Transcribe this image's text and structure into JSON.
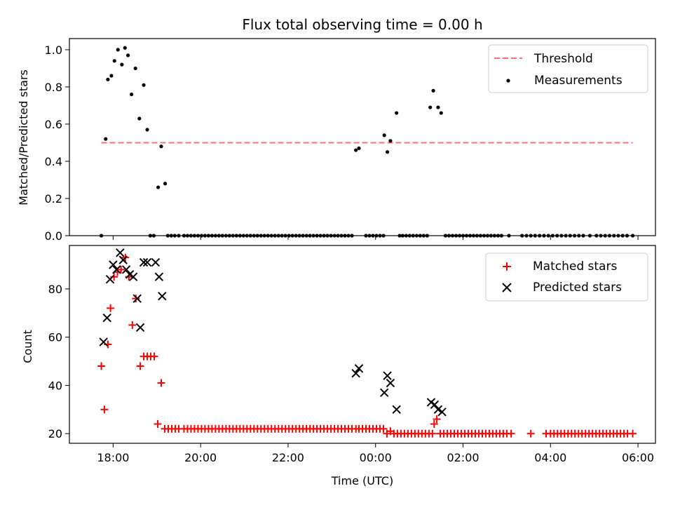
{
  "title": "Flux total observing time = 0.00 h",
  "chart_data": [
    {
      "type": "scatter",
      "ylabel": "Matched/Predicted stars",
      "xlim_hours": [
        17.0,
        30.4
      ],
      "ylim": [
        0,
        1.06
      ],
      "yticks": [
        0.0,
        0.2,
        0.4,
        0.6,
        0.8,
        1.0
      ],
      "ytick_labels": [
        "0.0",
        "0.2",
        "0.4",
        "0.6",
        "0.8",
        "1.0"
      ],
      "legend_position": "top-right",
      "threshold": {
        "name": "Threshold",
        "value": 0.5,
        "x_start": 17.73,
        "x_end": 29.88,
        "color": "#ff6e6e"
      },
      "series": [
        {
          "name": "Measurements",
          "color": "#000000",
          "x": [
            17.73,
            17.83,
            17.88,
            17.96,
            18.03,
            18.11,
            18.2,
            18.27,
            18.34,
            18.42,
            18.51,
            18.6,
            18.7,
            18.78,
            18.85,
            18.93,
            19.03,
            19.1,
            19.19,
            19.25,
            19.33,
            19.41,
            19.5,
            19.62,
            19.7,
            19.78,
            19.86,
            19.94,
            20.02,
            20.1,
            20.18,
            20.26,
            20.34,
            20.42,
            20.5,
            20.58,
            20.66,
            20.74,
            20.82,
            20.9,
            20.98,
            21.06,
            21.14,
            21.22,
            21.3,
            21.38,
            21.46,
            21.54,
            21.62,
            21.7,
            21.78,
            21.86,
            21.94,
            22.02,
            22.1,
            22.18,
            22.26,
            22.34,
            22.42,
            22.5,
            22.58,
            22.66,
            22.74,
            22.82,
            22.9,
            22.98,
            23.06,
            23.14,
            23.22,
            23.3,
            23.38,
            23.46,
            23.55,
            23.62,
            23.78,
            23.86,
            23.94,
            24.02,
            24.1,
            24.18,
            24.2,
            24.27,
            24.34,
            24.48,
            24.55,
            24.62,
            24.7,
            24.78,
            24.86,
            24.94,
            25.02,
            25.1,
            25.18,
            25.25,
            25.32,
            25.43,
            25.5,
            25.6,
            25.68,
            25.76,
            25.84,
            25.92,
            26.0,
            26.08,
            26.16,
            26.24,
            26.32,
            26.4,
            26.48,
            26.56,
            26.64,
            26.72,
            26.8,
            26.88,
            27.05,
            27.35,
            27.45,
            27.55,
            27.65,
            27.75,
            27.85,
            27.95,
            28.05,
            28.15,
            28.25,
            28.35,
            28.45,
            28.55,
            28.65,
            28.75,
            28.9,
            29.05,
            29.15,
            29.25,
            29.35,
            29.45,
            29.55,
            29.65,
            29.75,
            29.88
          ],
          "y": [
            0.0,
            0.52,
            0.84,
            0.86,
            0.94,
            1.0,
            0.92,
            1.01,
            0.97,
            0.76,
            0.9,
            0.63,
            0.81,
            0.57,
            0.0,
            0.0,
            0.26,
            0.48,
            0.28,
            0.0,
            0.0,
            0.0,
            0.0,
            0.0,
            0.0,
            0.0,
            0.0,
            0.0,
            0.0,
            0.0,
            0.0,
            0.0,
            0.0,
            0.0,
            0.0,
            0.0,
            0.0,
            0.0,
            0.0,
            0.0,
            0.0,
            0.0,
            0.0,
            0.0,
            0.0,
            0.0,
            0.0,
            0.0,
            0.0,
            0.0,
            0.0,
            0.0,
            0.0,
            0.0,
            0.0,
            0.0,
            0.0,
            0.0,
            0.0,
            0.0,
            0.0,
            0.0,
            0.0,
            0.0,
            0.0,
            0.0,
            0.0,
            0.0,
            0.0,
            0.0,
            0.0,
            0.0,
            0.46,
            0.47,
            0.0,
            0.0,
            0.0,
            0.0,
            0.0,
            0.0,
            0.54,
            0.45,
            0.51,
            0.66,
            0.0,
            0.0,
            0.0,
            0.0,
            0.0,
            0.0,
            0.0,
            0.0,
            0.0,
            0.69,
            0.78,
            0.69,
            0.66,
            0.0,
            0.0,
            0.0,
            0.0,
            0.0,
            0.0,
            0.0,
            0.0,
            0.0,
            0.0,
            0.0,
            0.0,
            0.0,
            0.0,
            0.0,
            0.0,
            0.0,
            0.0,
            0.0,
            0.0,
            0.0,
            0.0,
            0.0,
            0.0,
            0.0,
            0.0,
            0.0,
            0.0,
            0.0,
            0.0,
            0.0,
            0.0,
            0.0,
            0.0,
            0.0,
            0.0,
            0.0,
            0.0,
            0.0,
            0.0,
            0.0,
            0.0,
            0.0
          ]
        }
      ]
    },
    {
      "type": "scatter",
      "ylabel": "Count",
      "xlabel": "Time (UTC)",
      "xlim_hours": [
        17.0,
        30.4
      ],
      "ylim": [
        16,
        98
      ],
      "yticks": [
        20,
        40,
        60,
        80
      ],
      "ytick_labels": [
        "20",
        "40",
        "60",
        "80"
      ],
      "xticks_hours": [
        18,
        20,
        22,
        24,
        26,
        28,
        30
      ],
      "xtick_labels": [
        "18:00",
        "20:00",
        "22:00",
        "00:00",
        "02:00",
        "04:00",
        "06:00"
      ],
      "legend_position": "top-right",
      "series": [
        {
          "name": "Matched stars",
          "marker": "plus",
          "color": "#ff0000",
          "x": [
            17.73,
            17.8,
            17.88,
            17.94,
            18.02,
            18.1,
            18.18,
            18.28,
            18.36,
            18.44,
            18.52,
            18.62,
            18.7,
            18.78,
            18.86,
            18.94,
            19.02,
            19.1,
            19.18,
            19.26,
            19.34,
            19.42,
            19.5,
            19.62,
            19.7,
            19.78,
            19.86,
            19.94,
            20.02,
            20.1,
            20.18,
            20.26,
            20.34,
            20.42,
            20.5,
            20.58,
            20.66,
            20.74,
            20.82,
            20.9,
            20.98,
            21.06,
            21.14,
            21.22,
            21.3,
            21.38,
            21.46,
            21.54,
            21.62,
            21.7,
            21.78,
            21.86,
            21.94,
            22.02,
            22.1,
            22.18,
            22.26,
            22.34,
            22.42,
            22.5,
            22.58,
            22.66,
            22.74,
            22.82,
            22.9,
            22.98,
            23.06,
            23.14,
            23.22,
            23.3,
            23.38,
            23.46,
            23.55,
            23.62,
            23.7,
            23.78,
            23.86,
            23.94,
            24.02,
            24.1,
            24.18,
            24.26,
            24.34,
            24.42,
            24.5,
            24.58,
            24.66,
            24.74,
            24.82,
            24.9,
            24.98,
            25.06,
            25.14,
            25.22,
            25.3,
            25.34,
            25.4,
            25.48,
            25.56,
            25.64,
            25.72,
            25.8,
            25.88,
            25.96,
            26.04,
            26.12,
            26.2,
            26.28,
            26.36,
            26.44,
            26.52,
            26.6,
            26.68,
            26.76,
            26.84,
            26.92,
            27.0,
            27.1,
            27.55,
            27.9,
            28.0,
            28.08,
            28.16,
            28.24,
            28.32,
            28.4,
            28.48,
            28.56,
            28.64,
            28.72,
            28.8,
            28.88,
            28.96,
            29.04,
            29.12,
            29.2,
            29.28,
            29.36,
            29.44,
            29.52,
            29.6,
            29.68,
            29.76,
            29.88
          ],
          "y": [
            48,
            30,
            57,
            72,
            85,
            87,
            88,
            93,
            85,
            65,
            76,
            48,
            52,
            52,
            52,
            52,
            24,
            41,
            22,
            22,
            22,
            22,
            22,
            22,
            22,
            22,
            22,
            22,
            22,
            22,
            22,
            22,
            22,
            22,
            22,
            22,
            22,
            22,
            22,
            22,
            22,
            22,
            22,
            22,
            22,
            22,
            22,
            22,
            22,
            22,
            22,
            22,
            22,
            22,
            22,
            22,
            22,
            22,
            22,
            22,
            22,
            22,
            22,
            22,
            22,
            22,
            22,
            22,
            22,
            22,
            22,
            22,
            22,
            22,
            22,
            22,
            22,
            22,
            22,
            22,
            22,
            20,
            21,
            20,
            20,
            20,
            20,
            20,
            20,
            20,
            20,
            20,
            20,
            20,
            20,
            24,
            26,
            20,
            20,
            20,
            20,
            20,
            20,
            20,
            20,
            20,
            20,
            20,
            20,
            20,
            20,
            20,
            20,
            20,
            20,
            20,
            20,
            20,
            20,
            20,
            20,
            20,
            20,
            20,
            20,
            20,
            20,
            20,
            20,
            20,
            20,
            20,
            20,
            20,
            20,
            20,
            20,
            20,
            20,
            20,
            20,
            20,
            20,
            20
          ]
        },
        {
          "name": "Predicted stars",
          "marker": "x",
          "color": "#000000",
          "x": [
            17.78,
            17.86,
            17.93,
            18.0,
            18.08,
            18.16,
            18.23,
            18.3,
            18.38,
            18.46,
            18.55,
            18.62,
            18.7,
            18.78,
            18.97,
            19.05,
            19.12,
            23.55,
            23.62,
            24.2,
            24.27,
            24.34,
            24.48,
            25.27,
            25.35,
            25.43,
            25.52
          ],
          "y": [
            58,
            68,
            84,
            90,
            88,
            95,
            92,
            88,
            86,
            85,
            76,
            64,
            91,
            91,
            91,
            85,
            77,
            45,
            47,
            37,
            44,
            41,
            30,
            33,
            32,
            30,
            29
          ]
        }
      ]
    }
  ]
}
